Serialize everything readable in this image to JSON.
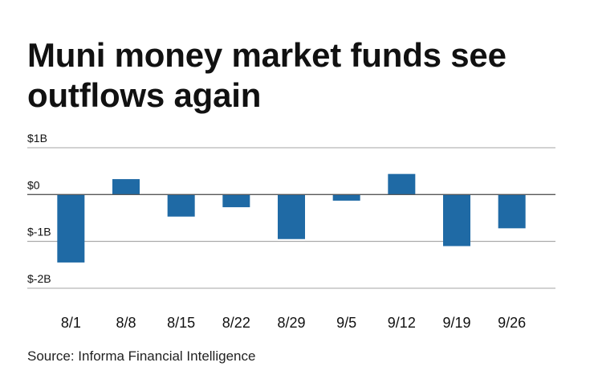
{
  "title": "Muni money market funds see outflows again",
  "source": "Source: Informa Financial Intelligence",
  "colors": {
    "bar": "#1f6aa5",
    "grid": "#888888",
    "zero_line": "#555555",
    "text": "#111111"
  },
  "chart_data": {
    "type": "bar",
    "title": "Muni money market funds see outflows again",
    "xlabel": "",
    "ylabel": "",
    "categories": [
      "8/1",
      "8/8",
      "8/15",
      "8/22",
      "8/29",
      "9/5",
      "9/12",
      "9/19",
      "9/26"
    ],
    "values": [
      -1.45,
      0.33,
      -0.47,
      -0.27,
      -0.95,
      -0.13,
      0.44,
      -1.1,
      -0.72
    ],
    "unit": "billions of dollars",
    "ylim": [
      -2,
      1
    ],
    "yticks": [
      1,
      0,
      -1,
      -2
    ],
    "ytick_labels": [
      "$1B",
      "$0",
      "$-1B",
      "$-2B"
    ],
    "grid": true,
    "legend": "none"
  }
}
